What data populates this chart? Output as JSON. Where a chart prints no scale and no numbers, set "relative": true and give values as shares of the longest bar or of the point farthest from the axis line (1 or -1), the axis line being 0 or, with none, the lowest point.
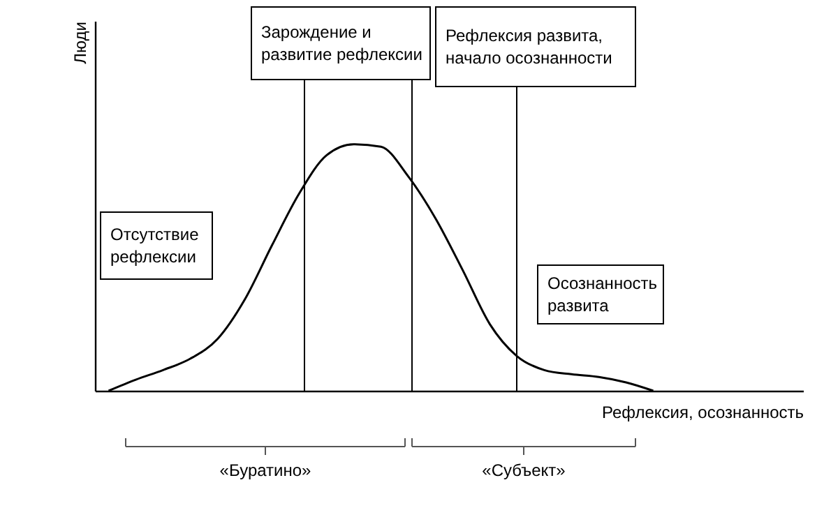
{
  "chart_data": {
    "type": "line",
    "relative": true,
    "xlabel": "Рефлексия, осознанность",
    "ylabel": "Люди",
    "categories": [
      null,
      null,
      null,
      null,
      null,
      null,
      null,
      null,
      null,
      null,
      null,
      null,
      null,
      null,
      null,
      null,
      null,
      null,
      null,
      null,
      null,
      null,
      null,
      null,
      null,
      null
    ],
    "series": [
      {
        "color": "#000000",
        "values": [
          0,
          0.045,
          0.084,
          0.13,
          0.21,
          0.37,
          0.59,
          0.8,
          0.955,
          1,
          0.99,
          0.87,
          0.7,
          0.49,
          0.27,
          0.14,
          0.084,
          0.067,
          0.056,
          0.034,
          0,
          null,
          null,
          null,
          null,
          null
        ]
      }
    ],
    "annotations": [
      "Отсутствие\nрефлексии",
      "Зарождение и\nразвитие рефлексии",
      "Рефлексия развита,\nначало осознанности",
      "Осознанность\nразвита",
      "«Буратино»",
      "«Субъект»"
    ],
    "grid": false,
    "tick_labels": false,
    "marker": "none",
    "line_style": "solid"
  }
}
